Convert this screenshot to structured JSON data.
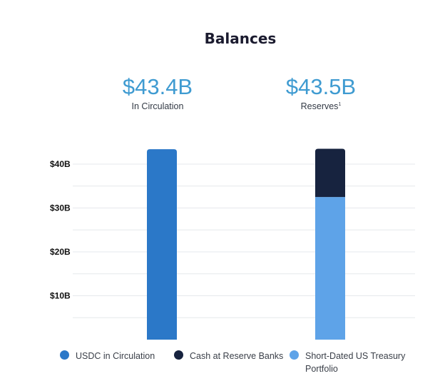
{
  "title": "Balances",
  "stats": [
    {
      "value": "$43.4B",
      "label": "In Circulation",
      "sup": ""
    },
    {
      "value": "$43.5B",
      "label": "Reserves",
      "sup": "1"
    }
  ],
  "chart_data": {
    "type": "bar",
    "stacked": true,
    "categories": [
      "In Circulation",
      "Reserves"
    ],
    "ylim": [
      0,
      44
    ],
    "yticks": [
      10,
      20,
      30,
      40
    ],
    "ytick_labels": [
      "$10B",
      "$20B",
      "$30B",
      "$40B"
    ],
    "grid": true,
    "legend_position": "bottom",
    "series": [
      {
        "name": "USDC in Circulation",
        "values": [
          43.4,
          0
        ],
        "color": "#2b78c8"
      },
      {
        "name": "Short-Dated US Treasury Portfolio",
        "values": [
          0,
          32.5
        ],
        "color": "#5ea3e8"
      },
      {
        "name": "Cash at Reserve Banks",
        "values": [
          0,
          11.0
        ],
        "color": "#17233f"
      }
    ]
  },
  "legend": [
    {
      "label": "USDC in Circulation",
      "color": "#2b78c8"
    },
    {
      "label": "Cash at Reserve Banks",
      "color": "#17233f"
    },
    {
      "label": "Short-Dated US Treasury Portfolio",
      "color": "#5ea3e8"
    }
  ]
}
